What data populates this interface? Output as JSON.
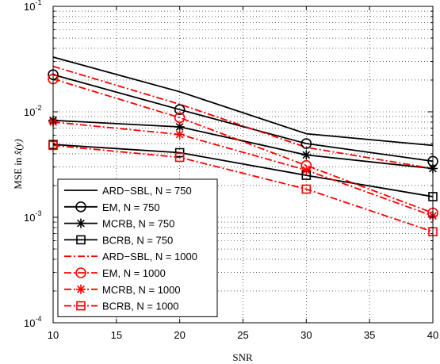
{
  "chart_data": {
    "type": "line",
    "xlabel": "SNR",
    "ylabel_prefix": "MSE in ",
    "ylabel_math": "x̂(y)",
    "x": [
      10,
      20,
      30,
      40
    ],
    "xlim": [
      10,
      40
    ],
    "ylim": [
      0.0001,
      0.1
    ],
    "yscale": "log",
    "grid": true,
    "legend_position": "bottom-left",
    "xticks": [
      "10",
      "15",
      "20",
      "25",
      "30",
      "35",
      "40"
    ],
    "yticks": [
      {
        "base": "10",
        "exp": "-4"
      },
      {
        "base": "10",
        "exp": "-3"
      },
      {
        "base": "10",
        "exp": "-2"
      },
      {
        "base": "10",
        "exp": "-1"
      }
    ],
    "series": [
      {
        "name": "ARD−SBL, N = 750",
        "color": "#000000",
        "dash": "solid",
        "marker": "none",
        "values": [
          0.033,
          0.0155,
          0.0062,
          0.0048
        ]
      },
      {
        "name": "EM, N = 750",
        "color": "#000000",
        "dash": "solid",
        "marker": "circle",
        "values": [
          0.0225,
          0.0105,
          0.005,
          0.0034
        ]
      },
      {
        "name": "MCRB, N = 750",
        "color": "#000000",
        "dash": "solid",
        "marker": "star",
        "values": [
          0.0083,
          0.0072,
          0.0039,
          0.0029
        ]
      },
      {
        "name": "BCRB, N = 750",
        "color": "#000000",
        "dash": "solid",
        "marker": "square",
        "values": [
          0.0049,
          0.0041,
          0.0025,
          0.00157
        ]
      },
      {
        "name": "ARD−SBL, N = 1000",
        "color": "#ff0000",
        "dash": "dashdot",
        "marker": "none",
        "values": [
          0.027,
          0.0118,
          0.0046,
          0.0029
        ]
      },
      {
        "name": "EM, N = 1000",
        "color": "#ff0000",
        "dash": "dashdot",
        "marker": "circle",
        "values": [
          0.0205,
          0.0088,
          0.0031,
          0.0011
        ]
      },
      {
        "name": "MCRB, N = 1000",
        "color": "#ff0000",
        "dash": "dashdot",
        "marker": "star",
        "values": [
          0.008,
          0.0061,
          0.0028,
          0.00103
        ]
      },
      {
        "name": "BCRB, N = 1000",
        "color": "#ff0000",
        "dash": "dashdot",
        "marker": "square",
        "values": [
          0.0048,
          0.0037,
          0.00185,
          0.00073
        ]
      }
    ]
  }
}
